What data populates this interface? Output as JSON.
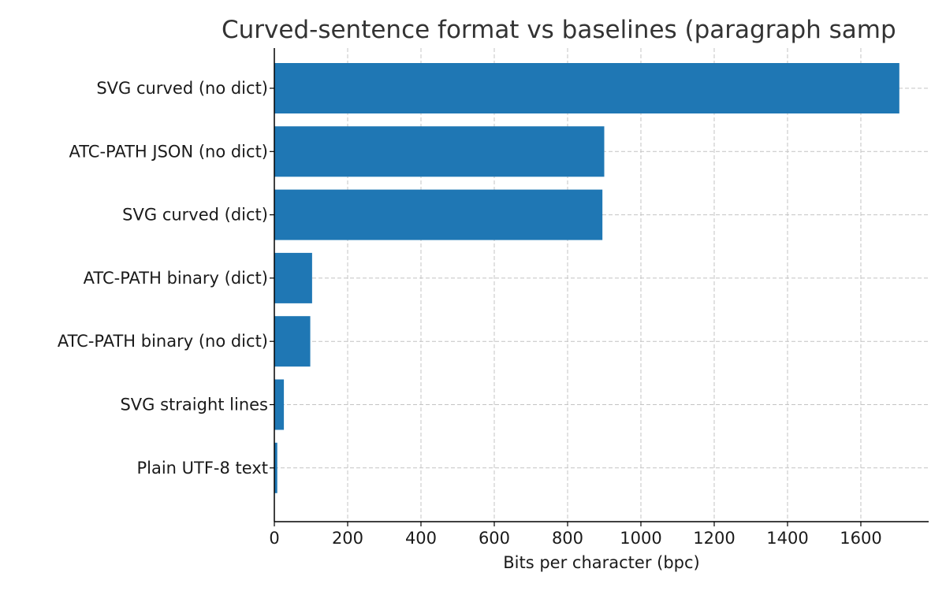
{
  "chart_data": {
    "type": "bar",
    "orientation": "horizontal",
    "title": "Curved-sentence format vs baselines (paragraph samp",
    "xlabel": "Bits per character (bpc)",
    "ylabel": "",
    "categories": [
      "SVG curved (no dict)",
      "ATC-PATH JSON (no dict)",
      "SVG curved (dict)",
      "ATC-PATH binary (dict)",
      "ATC-PATH binary (no dict)",
      "SVG straight lines",
      "Plain UTF-8 text"
    ],
    "values": [
      1705,
      900,
      895,
      103,
      98,
      26,
      8
    ],
    "xlim": [
      0,
      1785
    ],
    "xticks": [
      0,
      200,
      400,
      600,
      800,
      1000,
      1200,
      1400,
      1600
    ],
    "grid": true,
    "bar_color": "#1f77b4"
  }
}
